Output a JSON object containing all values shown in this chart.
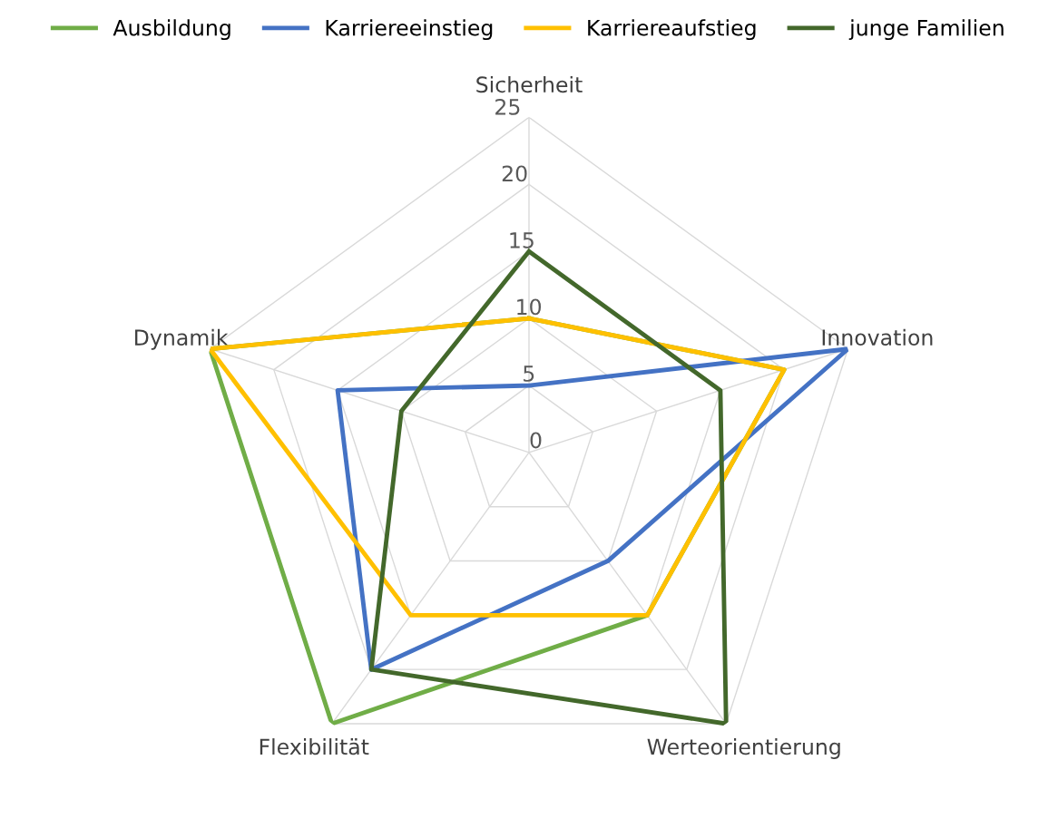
{
  "chart_data": {
    "type": "radar",
    "categories": [
      "Sicherheit",
      "Innovation",
      "Werteorientierung",
      "Flexibilität",
      "Dynamik"
    ],
    "series": [
      {
        "name": "Ausbildung",
        "color": "#70ad47",
        "values": [
          10,
          20,
          15,
          25,
          25
        ]
      },
      {
        "name": "Karriereeinstieg",
        "color": "#4472c4",
        "values": [
          5,
          25,
          10,
          20,
          15
        ]
      },
      {
        "name": "Karriereaufstieg",
        "color": "#ffc000",
        "values": [
          10,
          20,
          15,
          15,
          25
        ]
      },
      {
        "name": "junge Familien",
        "color": "#43682b",
        "values": [
          15,
          15,
          25,
          20,
          10
        ]
      }
    ],
    "ylim": [
      0,
      25
    ],
    "yticks": [
      0,
      5,
      10,
      15,
      20,
      25
    ],
    "grid": true,
    "legend": "top",
    "marker": "none",
    "line_style": "solid"
  }
}
